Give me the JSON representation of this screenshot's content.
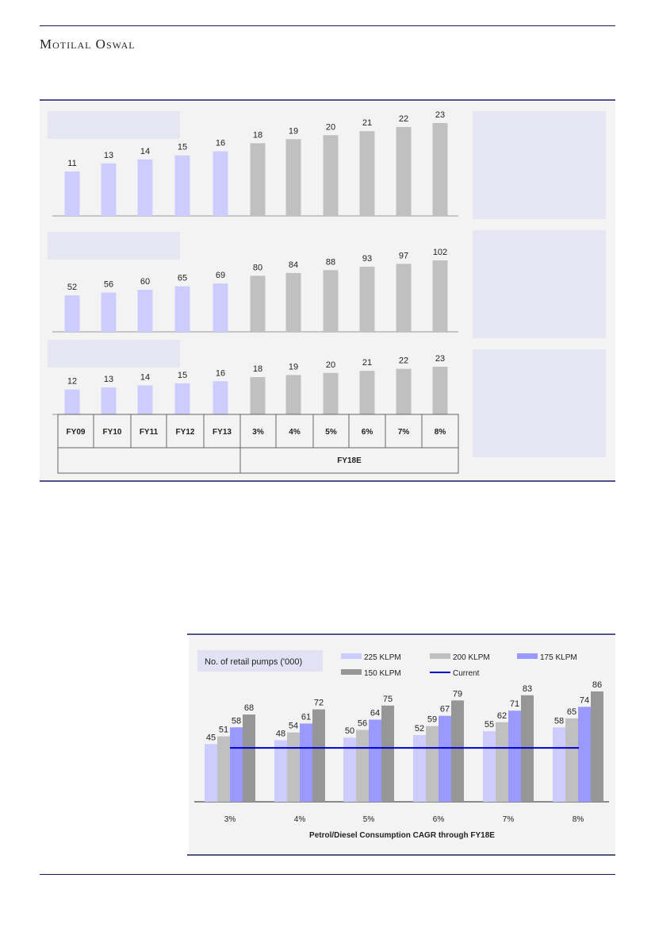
{
  "header": {
    "brand": "Motilal Oswal"
  },
  "colors": {
    "historical": "#ccccff",
    "projected": "#c0c0c0",
    "panel": "#e6e6f2",
    "c225": "#ccccff",
    "c200": "#c0c0c0",
    "c175": "#9999ff",
    "c150": "#969696",
    "current": "#0000cc"
  },
  "chart_data": [
    {
      "type": "bar",
      "categories": [
        "FY09",
        "FY10",
        "FY11",
        "FY12",
        "FY13",
        "3%",
        "4%",
        "5%",
        "6%",
        "7%",
        "8%"
      ],
      "values": [
        11,
        13,
        14,
        15,
        16,
        18,
        19,
        20,
        21,
        22,
        23
      ]
    },
    {
      "type": "bar",
      "categories": [
        "FY09",
        "FY10",
        "FY11",
        "FY12",
        "FY13",
        "3%",
        "4%",
        "5%",
        "6%",
        "7%",
        "8%"
      ],
      "values": [
        52,
        56,
        60,
        65,
        69,
        80,
        84,
        88,
        93,
        97,
        102
      ]
    },
    {
      "type": "bar",
      "categories": [
        "FY09",
        "FY10",
        "FY11",
        "FY12",
        "FY13",
        "3%",
        "4%",
        "5%",
        "6%",
        "7%",
        "8%"
      ],
      "values": [
        12,
        13,
        14,
        15,
        16,
        18,
        19,
        20,
        21,
        22,
        23
      ],
      "table_group_label": "FY18E"
    },
    {
      "type": "bar",
      "title": "No. of retail pumps ('000)",
      "xlabel": "Petrol/Diesel Consumption  CAGR through FY18E",
      "categories": [
        "3%",
        "4%",
        "5%",
        "6%",
        "7%",
        "8%"
      ],
      "series": [
        {
          "name": "225 KLPM",
          "values": [
            45,
            48,
            50,
            52,
            55,
            58
          ]
        },
        {
          "name": "200 KLPM",
          "values": [
            51,
            54,
            56,
            59,
            62,
            65
          ]
        },
        {
          "name": "175 KLPM",
          "values": [
            58,
            61,
            64,
            67,
            71,
            74
          ]
        },
        {
          "name": "150 KLPM",
          "values": [
            68,
            72,
            75,
            79,
            83,
            86
          ]
        }
      ],
      "reference_line": {
        "name": "Current",
        "value": 42
      },
      "legend": "top"
    }
  ]
}
